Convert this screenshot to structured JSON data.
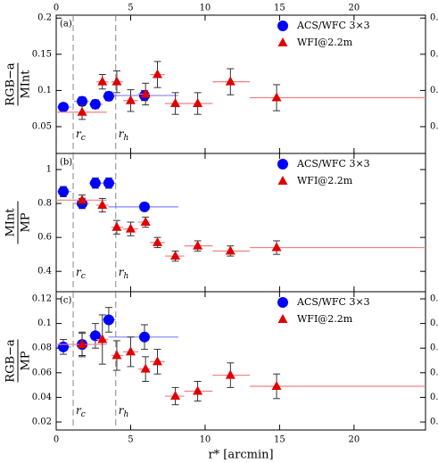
{
  "chart_data": [
    {
      "type": "scatter",
      "panel_label": "(a)",
      "ylabel_num": "RGB−a",
      "ylabel_den": "MInt",
      "xlim": [
        0,
        24.8
      ],
      "xticks": [
        0,
        5,
        10,
        15,
        20
      ],
      "xtick_labels": "top",
      "ylim": [
        0.013,
        0.204
      ],
      "yticks": [
        0.05,
        0.1,
        0.15,
        0.2
      ],
      "right_ticklabels": true,
      "vlines": [
        {
          "value": 1.14,
          "symbol": "r",
          "subscript": "c"
        },
        {
          "value": 4.0,
          "symbol": "r",
          "subscript": "h"
        }
      ],
      "series": [
        {
          "name": "ACS/WFC 3×3",
          "marker": "circle",
          "color": "#0000ff",
          "bar_color": "#8080ff",
          "x": [
            0.48,
            1.74,
            2.63,
            3.53,
            5.93
          ],
          "values": [
            0.077,
            0.085,
            0.081,
            0.092,
            0.093
          ],
          "yerr": [
            0.005,
            0.006,
            0.006,
            0.006,
            0.007
          ],
          "xmin": [
            0,
            1.2,
            2.2,
            3.1,
            3.5
          ],
          "xmax": [
            1.0,
            2.2,
            3.1,
            4.0,
            8.2
          ]
        },
        {
          "name": "WFI@2.2m",
          "marker": "triangle",
          "color": "#e00000",
          "bar_color": "#f08080",
          "x": [
            1.74,
            3.1,
            4.07,
            5.0,
            6.0,
            6.8,
            8.0,
            9.5,
            11.7,
            14.8
          ],
          "values": [
            0.07,
            0.112,
            0.112,
            0.086,
            0.095,
            0.122,
            0.082,
            0.082,
            0.112,
            0.09
          ],
          "yerr": [
            0.01,
            0.01,
            0.015,
            0.015,
            0.015,
            0.018,
            0.015,
            0.015,
            0.018,
            0.018
          ],
          "xmin": [
            0,
            2.7,
            3.7,
            4.5,
            5.5,
            6.3,
            7.3,
            8.6,
            10.5,
            13.0
          ],
          "xmax": [
            3.4,
            3.5,
            4.5,
            5.5,
            6.3,
            7.3,
            8.6,
            10.5,
            13.0,
            24.8
          ]
        }
      ]
    },
    {
      "type": "scatter",
      "panel_label": "(b)",
      "ylabel_num": "MInt",
      "ylabel_den": "MP",
      "xlim": [
        0,
        24.8
      ],
      "xticks": [
        0,
        5,
        10,
        15,
        20
      ],
      "xtick_labels": "none",
      "ylim": [
        0.28,
        1.095
      ],
      "yticks": [
        0.4,
        0.6,
        0.8,
        1
      ],
      "right_ticklabels": false,
      "vlines": [
        {
          "value": 1.14,
          "symbol": "r",
          "subscript": "c"
        },
        {
          "value": 4.0,
          "symbol": "r",
          "subscript": "h"
        }
      ],
      "series": [
        {
          "name": "ACS/WFC 3×3",
          "marker": "circle",
          "color": "#0000ff",
          "bar_color": "#8080ff",
          "x": [
            0.48,
            1.74,
            2.63,
            3.53,
            5.93
          ],
          "values": [
            0.87,
            0.8,
            0.92,
            0.92,
            0.78
          ],
          "yerr": [
            0.03,
            0.03,
            0.03,
            0.03,
            0.02
          ],
          "xmin": [
            0,
            1.2,
            2.2,
            3.1,
            3.5
          ],
          "xmax": [
            1.0,
            2.2,
            3.1,
            4.0,
            8.2
          ]
        },
        {
          "name": "WFI@2.2m",
          "marker": "triangle",
          "color": "#e00000",
          "bar_color": "#f08080",
          "x": [
            1.74,
            3.1,
            4.07,
            5.0,
            6.0,
            6.8,
            8.0,
            9.5,
            11.7,
            14.8
          ],
          "values": [
            0.82,
            0.79,
            0.66,
            0.65,
            0.69,
            0.57,
            0.49,
            0.55,
            0.52,
            0.54
          ],
          "yerr": [
            0.03,
            0.04,
            0.04,
            0.04,
            0.03,
            0.03,
            0.03,
            0.03,
            0.03,
            0.04
          ],
          "xmin": [
            0,
            2.7,
            3.7,
            4.5,
            5.5,
            6.3,
            7.3,
            8.6,
            10.5,
            13.0
          ],
          "xmax": [
            3.4,
            3.5,
            4.5,
            5.5,
            6.3,
            7.3,
            8.6,
            10.5,
            13.0,
            24.8
          ]
        }
      ]
    },
    {
      "type": "scatter",
      "panel_label": "(c)",
      "ylabel_num": "RGB−a",
      "ylabel_den": "MP",
      "xlabel": "r* [arcmin]",
      "xlim": [
        0,
        24.8
      ],
      "xticks": [
        0,
        5,
        10,
        15,
        20
      ],
      "xtick_labels": "bottom",
      "ylim": [
        0.0135,
        0.1258
      ],
      "yticks": [
        0.02,
        0.04,
        0.06,
        0.08,
        0.1,
        0.12
      ],
      "right_ticklabels": true,
      "vlines": [
        {
          "value": 1.14,
          "symbol": "r",
          "subscript": "c"
        },
        {
          "value": 4.0,
          "symbol": "r",
          "subscript": "h"
        }
      ],
      "series": [
        {
          "name": "ACS/WFC 3×3",
          "marker": "circle",
          "color": "#0000ff",
          "bar_color": "#8080ff",
          "x": [
            0.48,
            1.74,
            2.63,
            3.53,
            5.93
          ],
          "values": [
            0.081,
            0.083,
            0.09,
            0.103,
            0.089
          ],
          "yerr": [
            0.006,
            0.009,
            0.01,
            0.01,
            0.01
          ],
          "xmin": [
            0,
            1.2,
            2.2,
            3.1,
            3.5
          ],
          "xmax": [
            1.0,
            2.2,
            3.1,
            4.0,
            8.2
          ]
        },
        {
          "name": "WFI@2.2m",
          "marker": "triangle",
          "color": "#e00000",
          "bar_color": "#f08080",
          "x": [
            1.74,
            3.1,
            4.07,
            5.0,
            6.0,
            6.8,
            8.0,
            9.5,
            11.7,
            14.8
          ],
          "values": [
            0.083,
            0.087,
            0.074,
            0.077,
            0.063,
            0.069,
            0.041,
            0.045,
            0.058,
            0.049
          ],
          "yerr": [
            0.01,
            0.02,
            0.012,
            0.012,
            0.01,
            0.01,
            0.007,
            0.008,
            0.01,
            0.01
          ],
          "xmin": [
            0,
            2.7,
            3.7,
            4.5,
            5.5,
            6.3,
            7.3,
            8.6,
            10.5,
            13.0
          ],
          "xmax": [
            3.4,
            3.5,
            4.5,
            5.5,
            6.3,
            7.3,
            8.6,
            10.5,
            13.0,
            24.8
          ]
        }
      ]
    }
  ]
}
